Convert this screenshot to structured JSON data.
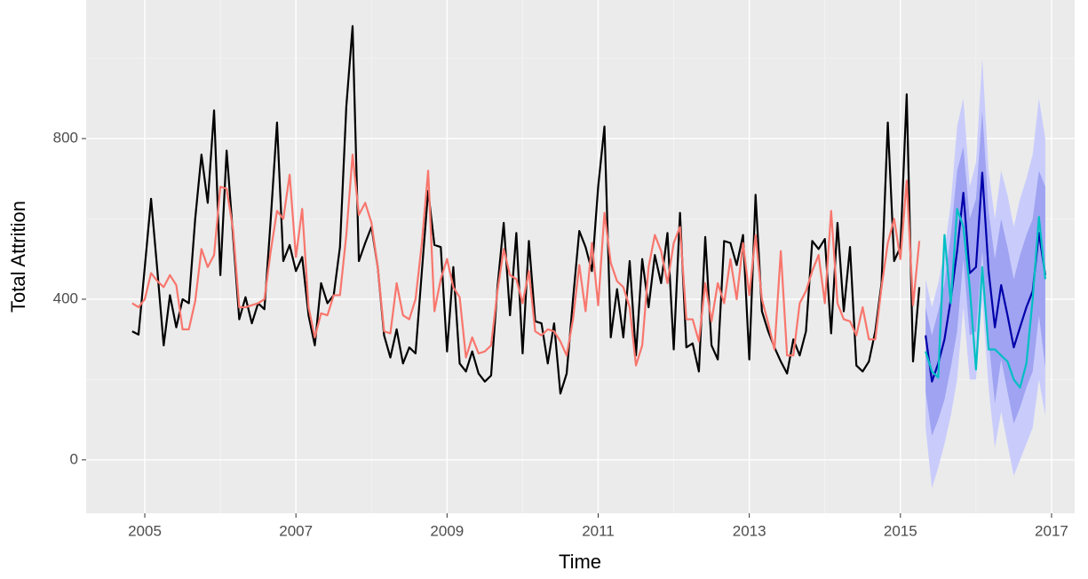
{
  "chart_data": {
    "type": "line",
    "xlabel": "Time",
    "ylabel": "Total Attrition",
    "xlim": [
      2004.224,
      2017.306
    ],
    "ylim": [
      -133,
      1145
    ],
    "xticks": [
      2005,
      2007,
      2009,
      2011,
      2013,
      2015,
      2017
    ],
    "yticks": [
      0,
      400,
      800
    ],
    "grid": true,
    "x": [
      2004.833,
      2004.917,
      2005,
      2005.083,
      2005.167,
      2005.25,
      2005.333,
      2005.417,
      2005.5,
      2005.583,
      2005.667,
      2005.75,
      2005.833,
      2005.917,
      2006,
      2006.083,
      2006.167,
      2006.25,
      2006.333,
      2006.417,
      2006.5,
      2006.583,
      2006.667,
      2006.75,
      2006.833,
      2006.917,
      2007,
      2007.083,
      2007.167,
      2007.25,
      2007.333,
      2007.417,
      2007.5,
      2007.583,
      2007.667,
      2007.75,
      2007.833,
      2007.917,
      2008,
      2008.083,
      2008.167,
      2008.25,
      2008.333,
      2008.417,
      2008.5,
      2008.583,
      2008.667,
      2008.75,
      2008.833,
      2008.917,
      2009,
      2009.083,
      2009.167,
      2009.25,
      2009.333,
      2009.417,
      2009.5,
      2009.583,
      2009.667,
      2009.75,
      2009.833,
      2009.917,
      2010,
      2010.083,
      2010.167,
      2010.25,
      2010.333,
      2010.417,
      2010.5,
      2010.583,
      2010.667,
      2010.75,
      2010.833,
      2010.917,
      2011,
      2011.083,
      2011.167,
      2011.25,
      2011.333,
      2011.417,
      2011.5,
      2011.583,
      2011.667,
      2011.75,
      2011.833,
      2011.917,
      2012,
      2012.083,
      2012.167,
      2012.25,
      2012.333,
      2012.417,
      2012.5,
      2012.583,
      2012.667,
      2012.75,
      2012.833,
      2012.917,
      2013,
      2013.083,
      2013.167,
      2013.25,
      2013.333,
      2013.417,
      2013.5,
      2013.583,
      2013.667,
      2013.75,
      2013.833,
      2013.917,
      2014,
      2014.083,
      2014.167,
      2014.25,
      2014.333,
      2014.417,
      2014.5,
      2014.583,
      2014.667,
      2014.75,
      2014.833,
      2014.917,
      2015,
      2015.083,
      2015.167,
      2015.25
    ],
    "bands": [
      {
        "color": "#C9CCFB",
        "x": [
          2015.333,
          2015.417,
          2015.5,
          2015.583,
          2015.667,
          2015.75,
          2015.833,
          2015.917,
          2016,
          2016.083,
          2016.167,
          2016.25,
          2016.333,
          2016.417,
          2016.5,
          2016.583,
          2016.667,
          2016.75,
          2016.833,
          2016.917
        ],
        "lower": [
          80,
          -70,
          -20,
          40,
          110,
          200,
          380,
          200,
          200,
          400,
          180,
          30,
          120,
          40,
          -40,
          0,
          40,
          80,
          200,
          110
        ],
        "upper": [
          450,
          380,
          440,
          520,
          640,
          830,
          900,
          680,
          740,
          1000,
          720,
          600,
          720,
          660,
          580,
          650,
          700,
          760,
          900,
          800
        ]
      },
      {
        "color": "#9FA3F1",
        "x": [
          2015.333,
          2015.417,
          2015.5,
          2015.583,
          2015.667,
          2015.75,
          2015.833,
          2015.917,
          2016,
          2016.083,
          2016.167,
          2016.25,
          2016.333,
          2016.417,
          2016.5,
          2016.583,
          2016.667,
          2016.75,
          2016.833,
          2016.917
        ],
        "lower": [
          170,
          60,
          100,
          150,
          230,
          320,
          500,
          310,
          320,
          520,
          300,
          140,
          250,
          170,
          90,
          130,
          180,
          220,
          360,
          230
        ],
        "upper": [
          380,
          310,
          370,
          440,
          560,
          720,
          780,
          600,
          650,
          870,
          620,
          500,
          600,
          530,
          450,
          510,
          560,
          600,
          720,
          680
        ]
      }
    ],
    "series": [
      {
        "color": "#000000",
        "values": [
          320,
          312,
          480,
          650,
          470,
          285,
          410,
          330,
          400,
          390,
          600,
          760,
          640,
          870,
          460,
          770,
          560,
          350,
          405,
          340,
          390,
          375,
          600,
          840,
          495,
          535,
          470,
          505,
          360,
          285,
          440,
          390,
          410,
          530,
          880,
          1080,
          495,
          540,
          580,
          480,
          310,
          255,
          325,
          240,
          280,
          265,
          470,
          670,
          535,
          530,
          270,
          480,
          240,
          220,
          270,
          215,
          195,
          210,
          430,
          590,
          360,
          565,
          265,
          545,
          345,
          340,
          240,
          340,
          165,
          215,
          400,
          570,
          530,
          470,
          680,
          830,
          305,
          425,
          305,
          495,
          260,
          500,
          380,
          510,
          440,
          565,
          275,
          615,
          280,
          290,
          220,
          555,
          285,
          250,
          545,
          540,
          485,
          560,
          250,
          660,
          370,
          320,
          280,
          245,
          215,
          300,
          260,
          320,
          545,
          525,
          550,
          315,
          590,
          370,
          530,
          235,
          220,
          245,
          320,
          440,
          840,
          495,
          530,
          910,
          245,
          430
        ]
      },
      {
        "color": "#F8766D",
        "values": [
          390,
          380,
          400,
          465,
          445,
          430,
          460,
          435,
          325,
          325,
          395,
          525,
          480,
          510,
          680,
          675,
          575,
          380,
          380,
          385,
          390,
          400,
          520,
          620,
          600,
          710,
          505,
          625,
          380,
          305,
          365,
          360,
          410,
          410,
          560,
          760,
          610,
          640,
          590,
          480,
          320,
          315,
          440,
          360,
          350,
          400,
          540,
          720,
          370,
          450,
          500,
          430,
          405,
          255,
          305,
          265,
          270,
          285,
          420,
          525,
          460,
          450,
          390,
          470,
          320,
          310,
          325,
          320,
          295,
          260,
          350,
          485,
          370,
          540,
          385,
          615,
          490,
          445,
          430,
          380,
          235,
          285,
          480,
          560,
          520,
          440,
          540,
          580,
          350,
          350,
          295,
          440,
          345,
          440,
          390,
          500,
          400,
          540,
          410,
          560,
          400,
          340,
          275,
          520,
          260,
          260,
          390,
          420,
          470,
          510,
          390,
          620,
          390,
          350,
          345,
          310,
          380,
          300,
          300,
          430,
          540,
          600,
          500,
          695,
          385,
          545
        ]
      },
      {
        "color": "#0000AA",
        "x": [
          2015.333,
          2015.417,
          2015.5,
          2015.583,
          2015.667,
          2015.75,
          2015.833,
          2015.917,
          2016,
          2016.083,
          2016.167,
          2016.25,
          2016.333,
          2016.417,
          2016.5,
          2016.583,
          2016.667,
          2016.75,
          2016.833,
          2016.917
        ],
        "values": [
          310,
          195,
          240,
          300,
          400,
          520,
          665,
          465,
          480,
          715,
          470,
          330,
          435,
          360,
          280,
          330,
          380,
          420,
          565,
          460
        ]
      },
      {
        "color": "#00BFC4",
        "x": [
          2015.333,
          2015.417,
          2015.5,
          2015.583,
          2015.667,
          2015.75,
          2015.833,
          2015.917,
          2016,
          2016.083,
          2016.167,
          2016.25,
          2016.333,
          2016.417,
          2016.5,
          2016.583,
          2016.667,
          2016.75,
          2016.833,
          2016.917
        ],
        "values": [
          270,
          220,
          205,
          560,
          390,
          625,
          580,
          430,
          225,
          480,
          275,
          275,
          260,
          245,
          200,
          180,
          240,
          400,
          605,
          450
        ]
      }
    ]
  }
}
